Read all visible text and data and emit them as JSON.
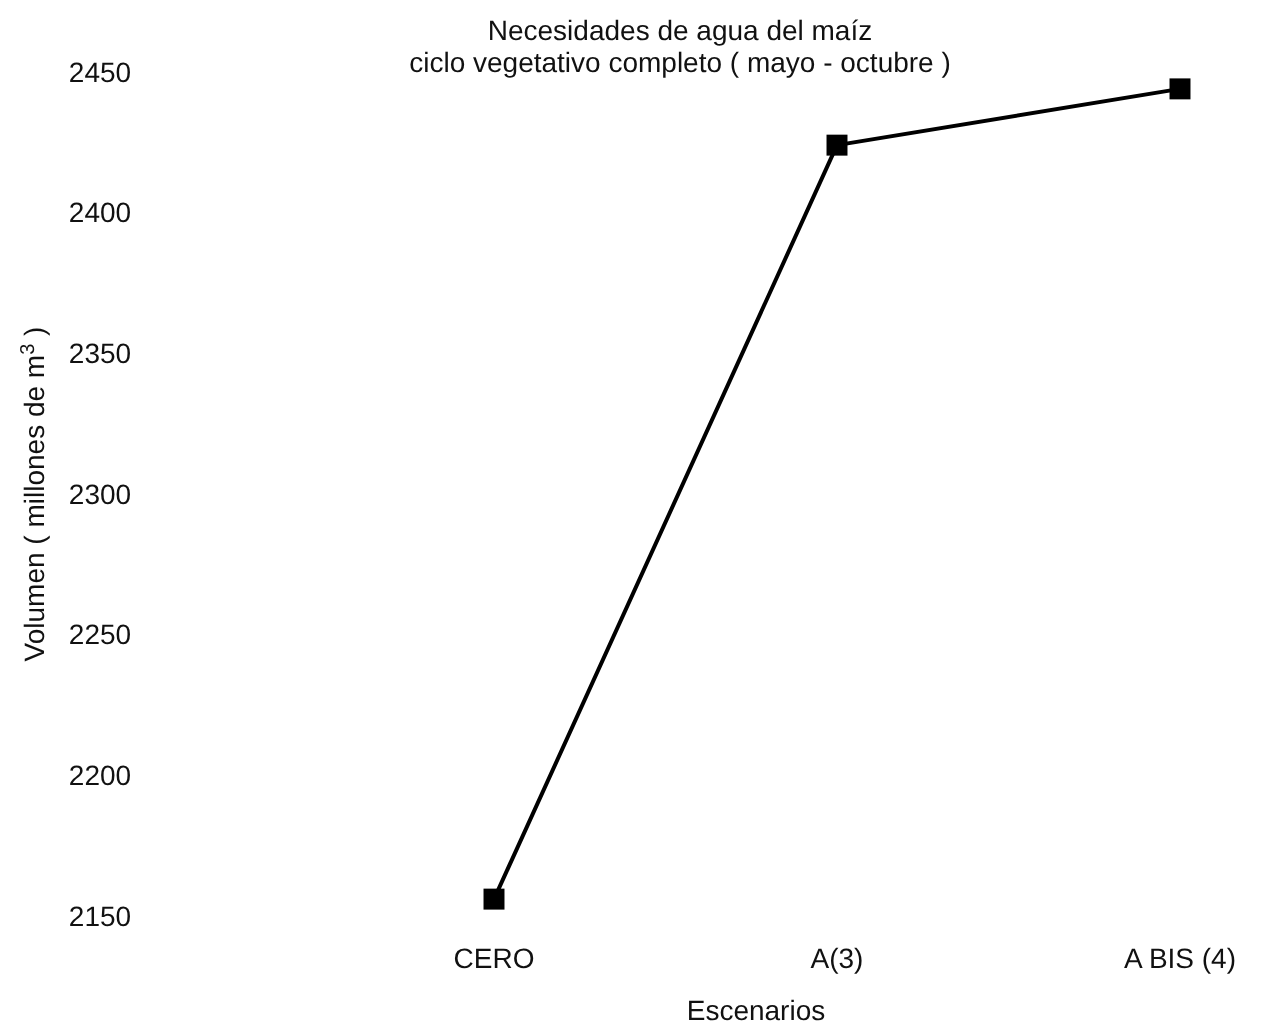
{
  "chart_data": {
    "type": "line",
    "title": "Necesidades de agua del maíz\nciclo vegetativo completo ( mayo - octubre )",
    "xlabel": "Escenarios",
    "ylabel": "Volumen ( millones de m$^{3}$ )",
    "categories": [
      "CERO",
      "A(3)",
      "A BIS (4)"
    ],
    "series": [
      {
        "color": "#000000",
        "values": [
          2156,
          2424,
          2444
        ]
      }
    ],
    "ylim": [
      2150,
      2450
    ],
    "yticks": [
      2150,
      2200,
      2250,
      2300,
      2350,
      2400,
      2450
    ],
    "marker": "square",
    "line_style": "solid"
  }
}
